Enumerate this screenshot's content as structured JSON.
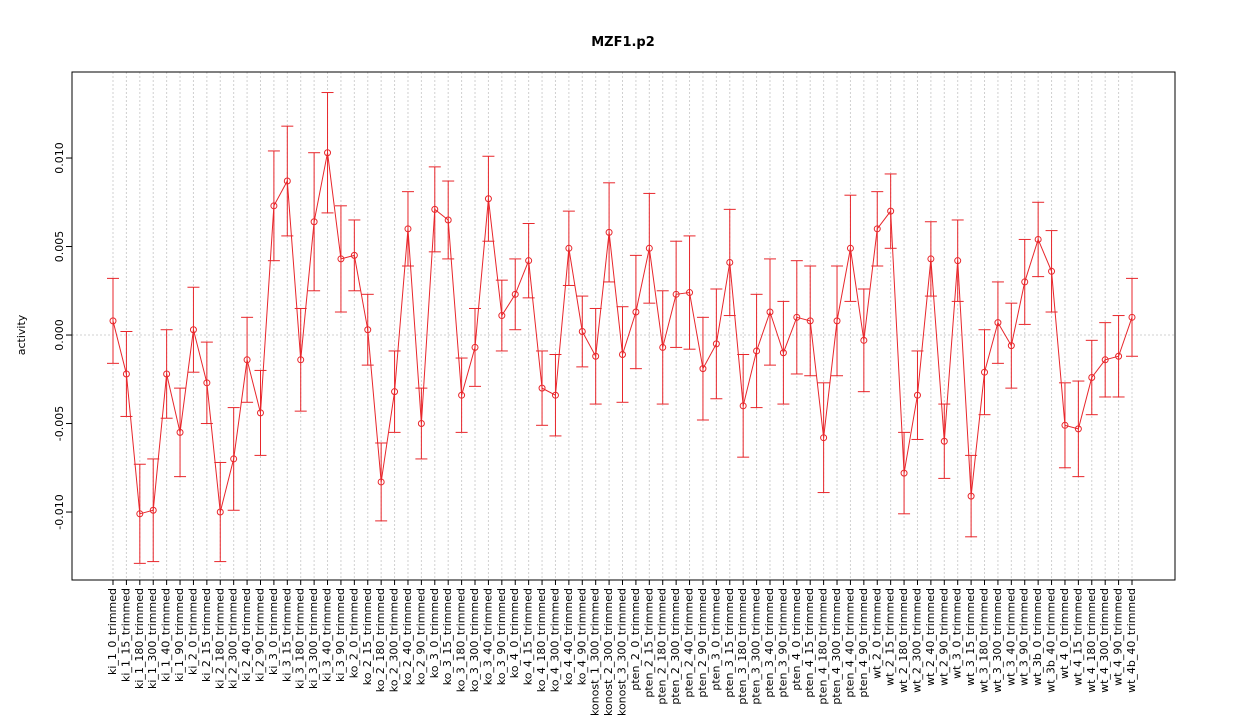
{
  "chart_data": {
    "type": "line_errorbar",
    "title": "MZF1.p2",
    "y_label": "activity",
    "color": "#e8262b",
    "grid": true,
    "hline": 0,
    "ylim": [
      -0.01384,
      0.01486
    ],
    "yticks": [
      {
        "value": -0.01,
        "label": "-0.010"
      },
      {
        "value": -0.005,
        "label": "-0.005"
      },
      {
        "value": 0,
        "label": "0.000"
      },
      {
        "value": 0.005,
        "label": "0.005"
      },
      {
        "value": 0.01,
        "label": "0.010"
      }
    ],
    "categories": [
      "ki_1_0_trimmed",
      "ki_1_15_trimmed",
      "ki_1_180_trimmed",
      "ki_1_300_trimmed",
      "ki_1_40_trimmed",
      "ki_1_90_trimmed",
      "ki_2_0_trimmed",
      "ki_2_15_trimmed",
      "ki_2_180_trimmed",
      "ki_2_300_trimmed",
      "ki_2_40_trimmed",
      "ki_2_90_trimmed",
      "ki_3_0_trimmed",
      "ki_3_15_trimmed",
      "ki_3_180_trimmed",
      "ki_3_300_trimmed",
      "ki_3_40_trimmed",
      "ki_3_90_trimmed",
      "ko_2_0_trimmed",
      "ko_2_15_trimmed",
      "ko_2_180_trimmed",
      "ko_2_300_trimmed",
      "ko_2_40_trimmed",
      "ko_2_90_trimmed",
      "ko_3_0_trimmed",
      "ko_3_15_trimmed",
      "ko_3_180_trimmed",
      "ko_3_300_trimmed",
      "ko_3_40_trimmed",
      "ko_3_90_trimmed",
      "ko_4_0_trimmed",
      "ko_4_15_trimmed",
      "ko_4_180_trimmed",
      "ko_4_300_trimmed",
      "ko_4_40_trimmed",
      "ko_4_90_trimmed",
      "konost_1_300_trimmed",
      "konost_2_300_trimmed",
      "konost_3_300_trimmed",
      "pten_2_0_trimmed",
      "pten_2_15_trimmed",
      "pten_2_180_trimmed",
      "pten_2_300_trimmed",
      "pten_2_40_trimmed",
      "pten_2_90_trimmed",
      "pten_3_0_trimmed",
      "pten_3_15_trimmed",
      "pten_3_180_trimmed",
      "pten_3_300_trimmed",
      "pten_3_40_trimmed",
      "pten_3_90_trimmed",
      "pten_4_0_trimmed",
      "pten_4_15_trimmed",
      "pten_4_180_trimmed",
      "pten_4_300_trimmed",
      "pten_4_40_trimmed",
      "pten_4_90_trimmed",
      "wt_2_0_trimmed",
      "wt_2_15_trimmed",
      "wt_2_180_trimmed",
      "wt_2_300_trimmed",
      "wt_2_40_trimmed",
      "wt_2_90_trimmed",
      "wt_3_0_trimmed",
      "wt_3_15_trimmed",
      "wt_3_180_trimmed",
      "wt_3_300_trimmed",
      "wt_3_40_trimmed",
      "wt_3_90_trimmed",
      "wt_3b_0_trimmed",
      "wt_3b_40_trimmed",
      "wt_4_0_trimmed",
      "wt_4_15_trimmed",
      "wt_4_180_trimmed",
      "wt_4_300_trimmed",
      "wt_4_90_trimmed",
      "wt_4b_40_trimmed"
    ],
    "values": [
      0.0008,
      -0.0022,
      -0.0101,
      -0.0099,
      -0.0022,
      -0.0055,
      0.0003,
      -0.0027,
      -0.01,
      -0.007,
      -0.0014,
      -0.0044,
      0.0073,
      0.0087,
      -0.0014,
      0.0064,
      0.0103,
      0.0043,
      0.0045,
      0.0003,
      -0.0083,
      -0.0032,
      0.006,
      -0.005,
      0.0071,
      0.0065,
      -0.0034,
      -0.0007,
      0.0077,
      0.0011,
      0.0023,
      0.0042,
      -0.003,
      -0.0034,
      0.0049,
      0.0002,
      -0.0012,
      0.0058,
      -0.0011,
      0.0013,
      0.0049,
      -0.0007,
      0.0023,
      0.0024,
      -0.0019,
      -0.0005,
      0.0041,
      -0.004,
      -0.0009,
      0.0013,
      -0.001,
      0.001,
      0.0008,
      -0.0058,
      0.0008,
      0.0049,
      -0.0003,
      0.006,
      0.007,
      -0.0078,
      -0.0034,
      0.0043,
      -0.006,
      0.0042,
      -0.0091,
      -0.0021,
      0.0007,
      -0.0006,
      0.003,
      0.0054,
      0.0036,
      -0.0051,
      -0.0053,
      -0.0024,
      -0.0014,
      -0.0012,
      0.001
    ],
    "errors": [
      0.0024,
      0.0024,
      0.0028,
      0.0029,
      0.0025,
      0.0025,
      0.0024,
      0.0023,
      0.0028,
      0.0029,
      0.0024,
      0.0024,
      0.0031,
      0.0031,
      0.0029,
      0.0039,
      0.0034,
      0.003,
      0.002,
      0.002,
      0.0022,
      0.0023,
      0.0021,
      0.002,
      0.0024,
      0.0022,
      0.0021,
      0.0022,
      0.0024,
      0.002,
      0.002,
      0.0021,
      0.0021,
      0.0023,
      0.0021,
      0.002,
      0.0027,
      0.0028,
      0.0027,
      0.0032,
      0.0031,
      0.0032,
      0.003,
      0.0032,
      0.0029,
      0.0031,
      0.003,
      0.0029,
      0.0032,
      0.003,
      0.0029,
      0.0032,
      0.0031,
      0.0031,
      0.0031,
      0.003,
      0.0029,
      0.0021,
      0.0021,
      0.0023,
      0.0025,
      0.0021,
      0.0021,
      0.0023,
      0.0023,
      0.0024,
      0.0023,
      0.0024,
      0.0024,
      0.0021,
      0.0023,
      0.0024,
      0.0027,
      0.0021,
      0.0021,
      0.0023,
      0.0022
    ]
  }
}
